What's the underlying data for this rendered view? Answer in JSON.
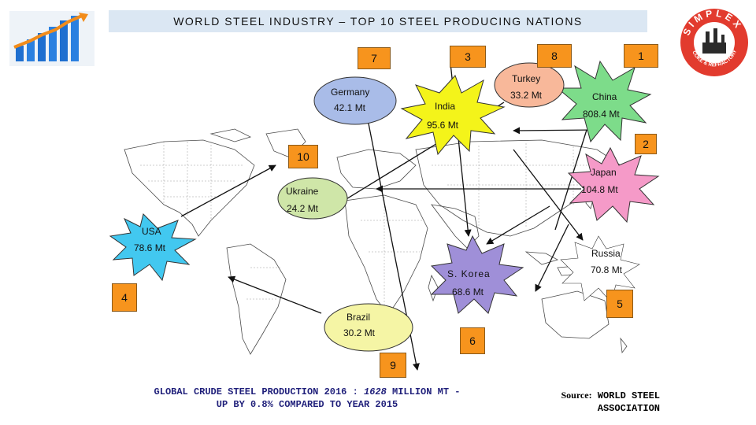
{
  "title": "WORLD STEEL INDUSTRY – TOP 10 STEEL PRODUCING NATIONS",
  "colors": {
    "title_bg": "#dbe7f3",
    "rank_box": "#f7941d",
    "china": "#7ddc8a",
    "japan": "#f59ac8",
    "india": "#f4f41a",
    "usa": "#42c8f0",
    "s_korea": "#9f8fd8",
    "germany": "#a9bce8",
    "turkey": "#f8b89a",
    "ukraine": "#cfe6a8",
    "brazil": "#f5f5a5",
    "russia": "#f5f8d0",
    "footer_text": "#1f1f7a"
  },
  "logos": {
    "left_icon": "growth-chart-icon",
    "right_logo_text": "SIMPLEX",
    "right_logo_subtext": "COKE & REFRACTORY"
  },
  "ranks": {
    "r1": "1",
    "r2": "2",
    "r3": "3",
    "r4": "4",
    "r5": "5",
    "r6": "6",
    "r7": "7",
    "r8": "8",
    "r9": "9",
    "r10": "10"
  },
  "countries": {
    "china": {
      "name": "China",
      "value": "808.4 Mt"
    },
    "japan": {
      "name": "Japan",
      "value": "104.8 Mt"
    },
    "india": {
      "name": "India",
      "value": "95.6 Mt"
    },
    "usa": {
      "name": "USA",
      "value": "78.6 Mt"
    },
    "russia": {
      "name": "Russia",
      "value": "70.8 Mt"
    },
    "s_korea": {
      "name": "S. Korea",
      "value": "68.6 Mt"
    },
    "germany": {
      "name": "Germany",
      "value": "42.1 Mt"
    },
    "turkey": {
      "name": "Turkey",
      "value": "33.2 Mt"
    },
    "brazil": {
      "name": "Brazil",
      "value": "30.2 Mt"
    },
    "ukraine": {
      "name": "Ukraine",
      "value": "24.2 Mt"
    }
  },
  "footer": {
    "line1_prefix": "GLOBAL CRUDE STEEL PRODUCTION 2016 : ",
    "line1_value": "1628",
    "line1_suffix": " MILLION MT -",
    "line2": "UP BY 0.8% COMPARED TO YEAR 2015"
  },
  "source": {
    "label": "Source:",
    "line1": "WORLD STEEL",
    "line2": "ASSOCIATION"
  }
}
